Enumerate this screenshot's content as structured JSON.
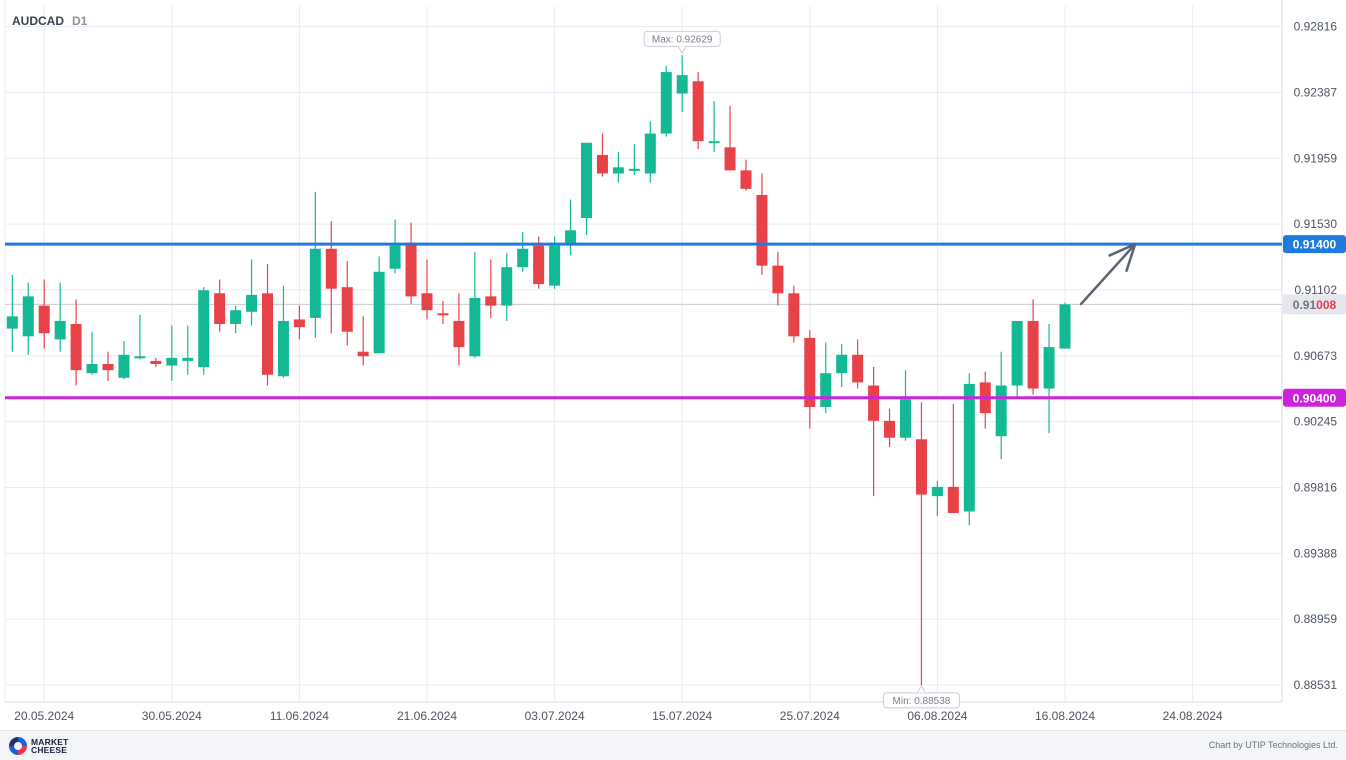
{
  "chart_data": {
    "type": "candlestick",
    "symbol": "AUDCAD",
    "timeframe": "D1",
    "ylim": [
      0.8842,
      0.9295
    ],
    "y_ticks": [
      "0.92816",
      "0.92387",
      "0.91959",
      "0.91530",
      "0.91102",
      "0.90673",
      "0.90245",
      "0.89816",
      "0.89388",
      "0.88959",
      "0.88531"
    ],
    "x_ticks": [
      {
        "label": "20.05.2024",
        "index": 2
      },
      {
        "label": "30.05.2024",
        "index": 10
      },
      {
        "label": "11.06.2024",
        "index": 18
      },
      {
        "label": "21.06.2024",
        "index": 26
      },
      {
        "label": "03.07.2024",
        "index": 34
      },
      {
        "label": "15.07.2024",
        "index": 42
      },
      {
        "label": "25.07.2024",
        "index": 50
      },
      {
        "label": "06.08.2024",
        "index": 58
      },
      {
        "label": "16.08.2024",
        "index": 66
      },
      {
        "label": "24.08.2024",
        "index": 74
      }
    ],
    "candles": [
      {
        "o": 0.9085,
        "h": 0.912,
        "l": 0.907,
        "c": 0.9093
      },
      {
        "o": 0.908,
        "h": 0.9115,
        "l": 0.9068,
        "c": 0.9106
      },
      {
        "o": 0.91,
        "h": 0.9117,
        "l": 0.9072,
        "c": 0.9082
      },
      {
        "o": 0.9078,
        "h": 0.9115,
        "l": 0.907,
        "c": 0.909
      },
      {
        "o": 0.9088,
        "h": 0.9104,
        "l": 0.9048,
        "c": 0.9058
      },
      {
        "o": 0.9056,
        "h": 0.9083,
        "l": 0.9055,
        "c": 0.9062
      },
      {
        "o": 0.9062,
        "h": 0.907,
        "l": 0.9051,
        "c": 0.9058
      },
      {
        "o": 0.9053,
        "h": 0.9077,
        "l": 0.9052,
        "c": 0.9068
      },
      {
        "o": 0.9067,
        "h": 0.9094,
        "l": 0.9065,
        "c": 0.9067
      },
      {
        "o": 0.9064,
        "h": 0.9066,
        "l": 0.906,
        "c": 0.9062
      },
      {
        "o": 0.9061,
        "h": 0.9087,
        "l": 0.9051,
        "c": 0.9066
      },
      {
        "o": 0.9064,
        "h": 0.9087,
        "l": 0.9055,
        "c": 0.9066
      },
      {
        "o": 0.906,
        "h": 0.9112,
        "l": 0.9055,
        "c": 0.911
      },
      {
        "o": 0.9108,
        "h": 0.9117,
        "l": 0.9083,
        "c": 0.9088
      },
      {
        "o": 0.9088,
        "h": 0.91,
        "l": 0.9082,
        "c": 0.9097
      },
      {
        "o": 0.9096,
        "h": 0.913,
        "l": 0.9087,
        "c": 0.9107
      },
      {
        "o": 0.9108,
        "h": 0.9127,
        "l": 0.9048,
        "c": 0.9055
      },
      {
        "o": 0.9054,
        "h": 0.9113,
        "l": 0.9053,
        "c": 0.909
      },
      {
        "o": 0.9091,
        "h": 0.91,
        "l": 0.9078,
        "c": 0.9086
      },
      {
        "o": 0.9092,
        "h": 0.9174,
        "l": 0.9079,
        "c": 0.9137
      },
      {
        "o": 0.9137,
        "h": 0.9155,
        "l": 0.9082,
        "c": 0.9111
      },
      {
        "o": 0.9112,
        "h": 0.9129,
        "l": 0.9074,
        "c": 0.9083
      },
      {
        "o": 0.907,
        "h": 0.9093,
        "l": 0.9061,
        "c": 0.9067
      },
      {
        "o": 0.9069,
        "h": 0.9132,
        "l": 0.9069,
        "c": 0.9122
      },
      {
        "o": 0.9124,
        "h": 0.9156,
        "l": 0.9121,
        "c": 0.9139
      },
      {
        "o": 0.9141,
        "h": 0.9154,
        "l": 0.9101,
        "c": 0.9106
      },
      {
        "o": 0.9108,
        "h": 0.913,
        "l": 0.9091,
        "c": 0.9097
      },
      {
        "o": 0.9095,
        "h": 0.9103,
        "l": 0.9088,
        "c": 0.9094
      },
      {
        "o": 0.909,
        "h": 0.9108,
        "l": 0.9061,
        "c": 0.9073
      },
      {
        "o": 0.9067,
        "h": 0.9135,
        "l": 0.9066,
        "c": 0.9105
      },
      {
        "o": 0.9106,
        "h": 0.913,
        "l": 0.9092,
        "c": 0.91
      },
      {
        "o": 0.91,
        "h": 0.9134,
        "l": 0.909,
        "c": 0.9125
      },
      {
        "o": 0.9125,
        "h": 0.9148,
        "l": 0.9122,
        "c": 0.9137
      },
      {
        "o": 0.9139,
        "h": 0.9145,
        "l": 0.9111,
        "c": 0.9114
      },
      {
        "o": 0.9113,
        "h": 0.9145,
        "l": 0.9111,
        "c": 0.9139
      },
      {
        "o": 0.914,
        "h": 0.9169,
        "l": 0.9133,
        "c": 0.9149
      },
      {
        "o": 0.9157,
        "h": 0.9205,
        "l": 0.9146,
        "c": 0.9206
      },
      {
        "o": 0.9198,
        "h": 0.9212,
        "l": 0.9184,
        "c": 0.9186
      },
      {
        "o": 0.9186,
        "h": 0.92,
        "l": 0.918,
        "c": 0.919
      },
      {
        "o": 0.9189,
        "h": 0.9205,
        "l": 0.9185,
        "c": 0.9189
      },
      {
        "o": 0.9186,
        "h": 0.922,
        "l": 0.918,
        "c": 0.9212
      },
      {
        "o": 0.9212,
        "h": 0.9256,
        "l": 0.921,
        "c": 0.9252
      },
      {
        "o": 0.9238,
        "h": 0.9263,
        "l": 0.9226,
        "c": 0.925
      },
      {
        "o": 0.9246,
        "h": 0.9252,
        "l": 0.9202,
        "c": 0.9207
      },
      {
        "o": 0.9207,
        "h": 0.9233,
        "l": 0.92,
        "c": 0.9207
      },
      {
        "o": 0.9203,
        "h": 0.923,
        "l": 0.919,
        "c": 0.9188
      },
      {
        "o": 0.9188,
        "h": 0.9195,
        "l": 0.9175,
        "c": 0.9176
      },
      {
        "o": 0.9172,
        "h": 0.9186,
        "l": 0.912,
        "c": 0.9126
      },
      {
        "o": 0.9126,
        "h": 0.9135,
        "l": 0.91,
        "c": 0.9108
      },
      {
        "o": 0.9108,
        "h": 0.9113,
        "l": 0.9076,
        "c": 0.908
      },
      {
        "o": 0.9079,
        "h": 0.9084,
        "l": 0.902,
        "c": 0.9034
      },
      {
        "o": 0.9034,
        "h": 0.9076,
        "l": 0.903,
        "c": 0.9056
      },
      {
        "o": 0.9056,
        "h": 0.9075,
        "l": 0.9047,
        "c": 0.9068
      },
      {
        "o": 0.9068,
        "h": 0.9078,
        "l": 0.9046,
        "c": 0.905
      },
      {
        "o": 0.9048,
        "h": 0.906,
        "l": 0.8976,
        "c": 0.9025
      },
      {
        "o": 0.9025,
        "h": 0.9033,
        "l": 0.9008,
        "c": 0.9014
      },
      {
        "o": 0.9014,
        "h": 0.9058,
        "l": 0.9012,
        "c": 0.9039
      },
      {
        "o": 0.9013,
        "h": 0.9037,
        "l": 0.8853,
        "c": 0.8977
      },
      {
        "o": 0.8976,
        "h": 0.8986,
        "l": 0.8963,
        "c": 0.8982
      },
      {
        "o": 0.8982,
        "h": 0.9036,
        "l": 0.8965,
        "c": 0.8965
      },
      {
        "o": 0.8966,
        "h": 0.9056,
        "l": 0.8957,
        "c": 0.9049
      },
      {
        "o": 0.905,
        "h": 0.9057,
        "l": 0.902,
        "c": 0.903
      },
      {
        "o": 0.9015,
        "h": 0.907,
        "l": 0.9,
        "c": 0.9048
      },
      {
        "o": 0.9048,
        "h": 0.909,
        "l": 0.904,
        "c": 0.909
      },
      {
        "o": 0.909,
        "h": 0.9104,
        "l": 0.9042,
        "c": 0.9046
      },
      {
        "o": 0.9046,
        "h": 0.9088,
        "l": 0.9017,
        "c": 0.9073
      },
      {
        "o": 0.9072,
        "h": 0.9102,
        "l": 0.9072,
        "c": 0.91008
      }
    ],
    "levels": [
      {
        "value": 0.914,
        "label": "0.91400",
        "color": "#1f7ae0"
      },
      {
        "value": 0.904,
        "label": "0.90400",
        "color": "#cc22dd"
      }
    ],
    "current_price": {
      "value": 0.91008,
      "label_prefix": "0.91",
      "label_suffix": "008"
    },
    "max_marker": {
      "label": "Max: 0.92629",
      "value": 0.92629,
      "index": 42
    },
    "min_marker": {
      "label": "Min: 0.88538",
      "value": 0.88538,
      "index": 57
    },
    "forecast_arrow": {
      "from_index": 67,
      "from_value": 0.9101,
      "to_index": 70.4,
      "to_value": 0.914
    },
    "colors": {
      "bull": "#13b995",
      "bear": "#e84249",
      "grid": "#e7ebf3",
      "axis_text": "#4d5563",
      "arrow": "#5a6272"
    }
  },
  "footer": {
    "logo_line1": "MARKET",
    "logo_line2": "CHEESE",
    "credit": "Chart by UTIP Technologies Ltd."
  }
}
